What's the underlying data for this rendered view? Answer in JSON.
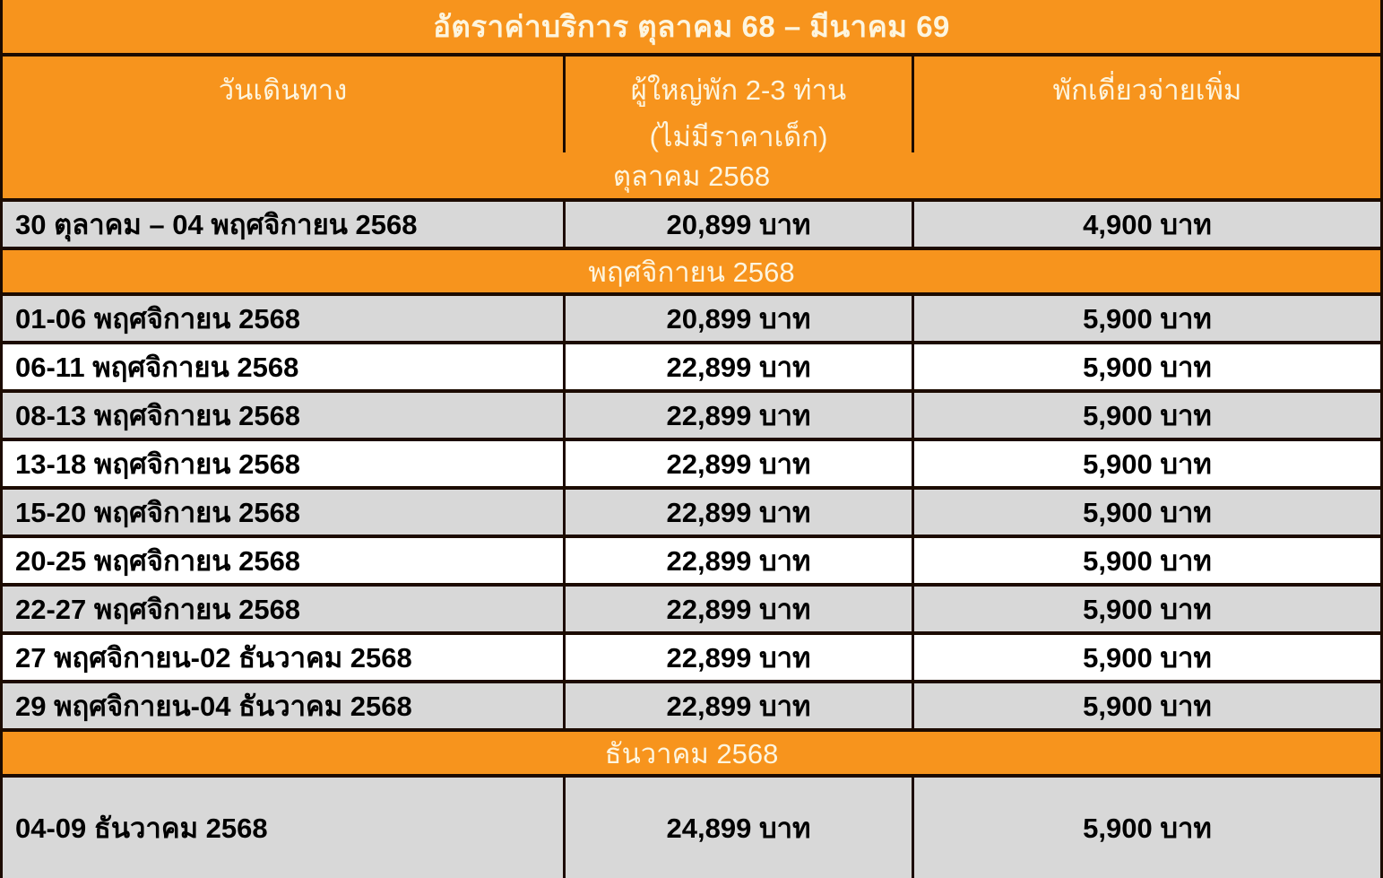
{
  "colors": {
    "accent_orange": "#F7941D",
    "border": "#1C0B00",
    "row_gray": "#D8D8D8",
    "row_white": "#FFFFFF",
    "header_text": "#FDF5DF",
    "body_text": "#000000"
  },
  "table": {
    "title": "อัตราค่าบริการ  ตุลาคม 68 – มีนาคม 69",
    "header": {
      "travel_date": "วันเดินทาง",
      "adult_line1": "ผู้ใหญ่พัก 2-3 ท่าน",
      "adult_line2": "(ไม่มีราคาเด็ก)",
      "single_extra": "พักเดี่ยวจ่ายเพิ่ม"
    },
    "sections": [
      {
        "label": "ตุลาคม 2568",
        "rows": [
          {
            "dates": "30 ตุลาคม – 04 พฤศจิกายน 2568",
            "adult_price": "20,899 บาท",
            "single_extra": "4,900 บาท"
          }
        ]
      },
      {
        "label": "พฤศจิกายน 2568",
        "rows": [
          {
            "dates": "01-06 พฤศจิกายน 2568",
            "adult_price": "20,899 บาท",
            "single_extra": "5,900 บาท"
          },
          {
            "dates": "06-11 พฤศจิกายน 2568",
            "adult_price": "22,899 บาท",
            "single_extra": "5,900 บาท"
          },
          {
            "dates": "08-13 พฤศจิกายน 2568",
            "adult_price": "22,899 บาท",
            "single_extra": "5,900 บาท"
          },
          {
            "dates": "13-18 พฤศจิกายน 2568",
            "adult_price": "22,899 บาท",
            "single_extra": "5,900 บาท"
          },
          {
            "dates": "15-20 พฤศจิกายน 2568",
            "adult_price": "22,899 บาท",
            "single_extra": "5,900 บาท"
          },
          {
            "dates": "20-25 พฤศจิกายน 2568",
            "adult_price": "22,899 บาท",
            "single_extra": "5,900 บาท"
          },
          {
            "dates": "22-27 พฤศจิกายน 2568",
            "adult_price": "22,899 บาท",
            "single_extra": "5,900 บาท"
          },
          {
            "dates": "27 พฤศจิกายน-02 ธันวาคม 2568",
            "adult_price": "22,899 บาท",
            "single_extra": "5,900 บาท"
          },
          {
            "dates": "29 พฤศจิกายน-04 ธันวาคม 2568",
            "adult_price": "22,899 บาท",
            "single_extra": "5,900 บาท"
          }
        ]
      },
      {
        "label": "ธันวาคม 2568",
        "rows": [
          {
            "dates": "04-09 ธันวาคม 2568",
            "adult_price": "24,899 บาท",
            "single_extra": "5,900 บาท"
          }
        ]
      }
    ]
  }
}
